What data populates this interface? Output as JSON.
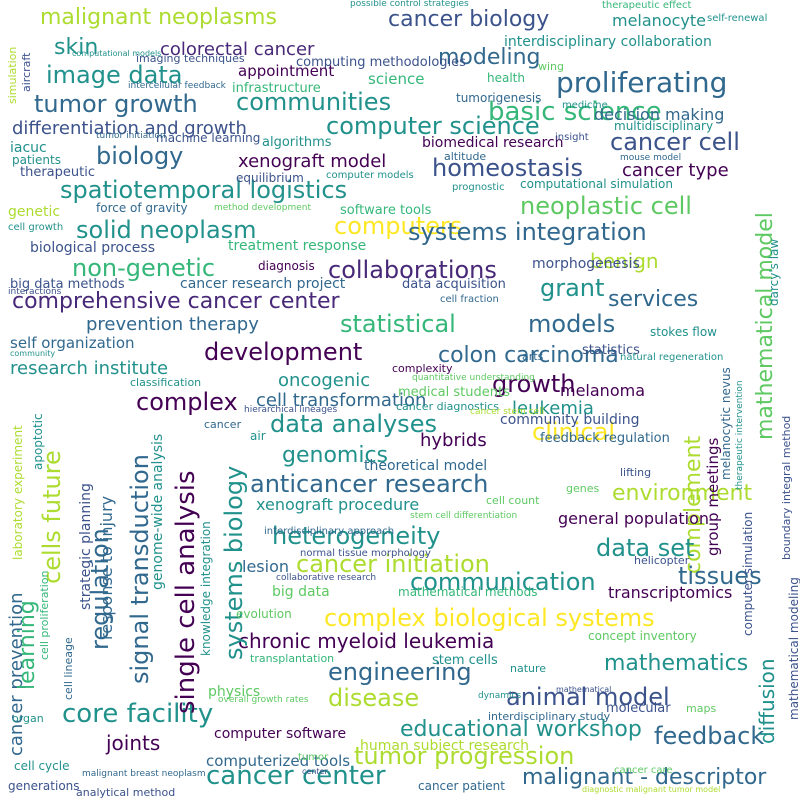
{
  "words": [
    "malignant neoplasms",
    "cancer biology",
    "melanocyte",
    "skin",
    "colorectal cancer",
    "modeling",
    "interdisciplinary collaboration",
    "computing methodologies",
    "image data",
    "appointment",
    "proliferating",
    "tumor growth",
    "communities",
    "infrastructure",
    "science",
    "health",
    "basic science",
    "differentiation and growth",
    "computer science",
    "tumorigenesis",
    "decision making",
    "cancer cell",
    "biology",
    "xenograft model",
    "homeostasis",
    "biomedical research",
    "cancer type",
    "spatiotemporal logistics",
    "neoplastic cell",
    "computers",
    "solid neoplasm",
    "systems integration",
    "mathematical model",
    "non-genetic",
    "collaborations",
    "benign",
    "grant",
    "comprehensive cancer center",
    "services",
    "statistical",
    "models",
    "prevention therapy",
    "development",
    "colon carcinoma",
    "growth",
    "self organization",
    "research institute",
    "complex",
    "oncogenic",
    "melanoma",
    "cell transformation",
    "data analyses",
    "leukemia",
    "complement",
    "genomics",
    "clinical",
    "hybrids",
    "anticancer research",
    "theoretical model",
    "environment",
    "xenograft procedure",
    "heterogeneity",
    "general population",
    "cancer initiation",
    "data set",
    "communication",
    "tissues",
    "transcriptomics",
    "complex biological systems",
    "chronic myeloid leukemia",
    "engineering",
    "mathematics",
    "animal model",
    "disease",
    "educational workshop",
    "core facility",
    "feedback",
    "tumor progression",
    "joints",
    "cancer center",
    "malignant - descriptor",
    "computerized tools",
    "computer software",
    "human subject research",
    "single cell analysis",
    "signal transduction",
    "systems biology",
    "regulation",
    "cells future",
    "cancer prevention",
    "learning",
    "response to injury",
    "genome-wide analysis",
    "diffusion",
    "group meetings",
    "strategic planning",
    "statistics",
    "morphogenesis",
    "cancer research project",
    "data acquisition",
    "treatment response",
    "diagnosis",
    "big data methods",
    "biological process",
    "force of gravity",
    "software tools",
    "genetic",
    "equilibrium",
    "therapeutic",
    "patients",
    "iacuc",
    "machine learning",
    "algorithms",
    "imaging techniques",
    "computational simulation",
    "multidisciplinary",
    "prognostic",
    "computer models",
    "altitude",
    "cell growth",
    "stokes flow",
    "cell fraction",
    "darcy's law",
    "classification",
    "complexity",
    "medical students",
    "cancer diagnostics",
    "community building",
    "feedback regulation",
    "lifting",
    "genes",
    "cell count",
    "helicopter",
    "lesion",
    "big data",
    "mathematical methods",
    "concept inventory",
    "stem cells",
    "nature",
    "evolution",
    "transplantation",
    "physics",
    "molecular",
    "interdisciplinary study",
    "maps",
    "cancer patient",
    "cancer care",
    "analytical method",
    "generations",
    "cell cycle",
    "organ",
    "tumor",
    "therapeutic effect",
    "self-renewal",
    "medicine",
    "wing",
    "insight",
    "simulation",
    "aircraft",
    "possible control strategies",
    "computer simulation",
    "mathematical modeling",
    "boundary integral method",
    "natural regeneration",
    "arts",
    "melanocytic nevus",
    "therapeutic intervention",
    "interactions",
    "apoptotic",
    "laboratory experiment",
    "cell proliferation",
    "cell lineage",
    "cancer",
    "air",
    "tumor initiation",
    "intercellular feedback",
    "computational models",
    "mouse model",
    "method development",
    "quantitative understanding",
    "cancer stem cell",
    "stem cell differentiation",
    "interdisciplinary approach",
    "normal tissue morphology",
    "collaborative research",
    "hierarchical lineages",
    "knowledge integration",
    "overall growth rates",
    "center",
    "dynamics",
    "mathematical",
    "malignant breast neoplasm",
    "diagnostic malignant tumor model",
    "community"
  ]
}
